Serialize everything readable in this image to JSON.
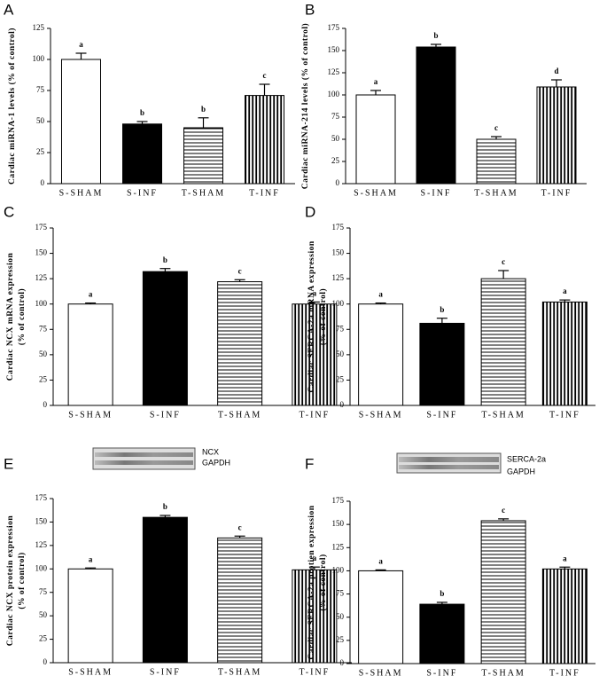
{
  "chart_data": [
    {
      "type": "bar",
      "panel": "A",
      "ylabel": [
        "Cardiac miRNA-1 levels (% of control)"
      ],
      "categories": [
        "S-SHAM",
        "S-INF",
        "T-SHAM",
        "T-INF"
      ],
      "values": [
        100,
        48,
        45,
        71
      ],
      "errors": [
        5,
        2,
        8,
        9
      ],
      "annotations": [
        "a",
        "b",
        "b",
        "c"
      ],
      "fills": [
        "white",
        "black",
        "hlines",
        "vlines"
      ],
      "ylim": [
        0,
        125
      ],
      "yticks": [
        0,
        25,
        50,
        75,
        100,
        125
      ]
    },
    {
      "type": "bar",
      "panel": "B",
      "ylabel": [
        "Cardiac miRNA-214 levels (% of control)"
      ],
      "categories": [
        "S-SHAM",
        "S-INF",
        "T-SHAM",
        "T-INF"
      ],
      "values": [
        100,
        154,
        50,
        109
      ],
      "errors": [
        5,
        3,
        3,
        8
      ],
      "annotations": [
        "a",
        "b",
        "c",
        "d"
      ],
      "fills": [
        "white",
        "black",
        "hlines",
        "vlines"
      ],
      "ylim": [
        0,
        175
      ],
      "yticks": [
        0,
        25,
        50,
        75,
        100,
        125,
        150,
        175
      ]
    },
    {
      "type": "bar",
      "panel": "C",
      "ylabel": [
        "Cardiac NCX mRNA expression",
        "(% of control)"
      ],
      "categories": [
        "S-SHAM",
        "S-INF",
        "T-SHAM",
        "T-INF"
      ],
      "values": [
        100,
        132,
        122,
        100
      ],
      "errors": [
        1,
        3,
        2,
        2
      ],
      "annotations": [
        "a",
        "b",
        "c",
        "a"
      ],
      "fills": [
        "white",
        "black",
        "hlines",
        "vlines"
      ],
      "ylim": [
        0,
        175
      ],
      "yticks": [
        0,
        25,
        50,
        75,
        100,
        125,
        150,
        175
      ]
    },
    {
      "type": "bar",
      "panel": "D",
      "ylabel": [
        "Cardiac SERCA-2a mRNA expression",
        "(% of control)"
      ],
      "categories": [
        "S-SHAM",
        "S-INF",
        "T-SHAM",
        "T-INF"
      ],
      "values": [
        100,
        81,
        125,
        102
      ],
      "errors": [
        1,
        5,
        8,
        2
      ],
      "annotations": [
        "a",
        "b",
        "c",
        "a"
      ],
      "fills": [
        "white",
        "black",
        "hlines",
        "vlines"
      ],
      "ylim": [
        0,
        175
      ],
      "yticks": [
        0,
        25,
        50,
        75,
        100,
        125,
        150,
        175
      ]
    },
    {
      "type": "bar",
      "panel": "E",
      "ylabel": [
        "Cardiac NCX protein expression",
        "(% of control)"
      ],
      "categories": [
        "S-SHAM",
        "S-INF",
        "T-SHAM",
        "T-INF"
      ],
      "values": [
        100,
        155,
        133,
        99
      ],
      "errors": [
        1,
        2,
        2,
        3
      ],
      "annotations": [
        "a",
        "b",
        "c",
        "a"
      ],
      "fills": [
        "white",
        "black",
        "hlines",
        "vlines"
      ],
      "blot_labels": [
        "NCX",
        "GAPDH"
      ],
      "ylim": [
        0,
        175
      ],
      "yticks": [
        0,
        25,
        50,
        75,
        100,
        125,
        150,
        175
      ]
    },
    {
      "type": "bar",
      "panel": "F",
      "ylabel": [
        "Cardiac SERCA-2a protien expression",
        "(% of control)"
      ],
      "categories": [
        "S-SHAM",
        "S-INF",
        "T-SHAM",
        "T-INF"
      ],
      "values": [
        100,
        64,
        154,
        102
      ],
      "errors": [
        1,
        2,
        2,
        2
      ],
      "annotations": [
        "a",
        "b",
        "c",
        "a"
      ],
      "fills": [
        "white",
        "black",
        "hlines",
        "vlines"
      ],
      "blot_labels": [
        "SERCA-2a",
        "GAPDH"
      ],
      "ylim": [
        0,
        175
      ],
      "yticks": [
        0,
        25,
        50,
        75,
        100,
        125,
        150,
        175
      ]
    }
  ]
}
